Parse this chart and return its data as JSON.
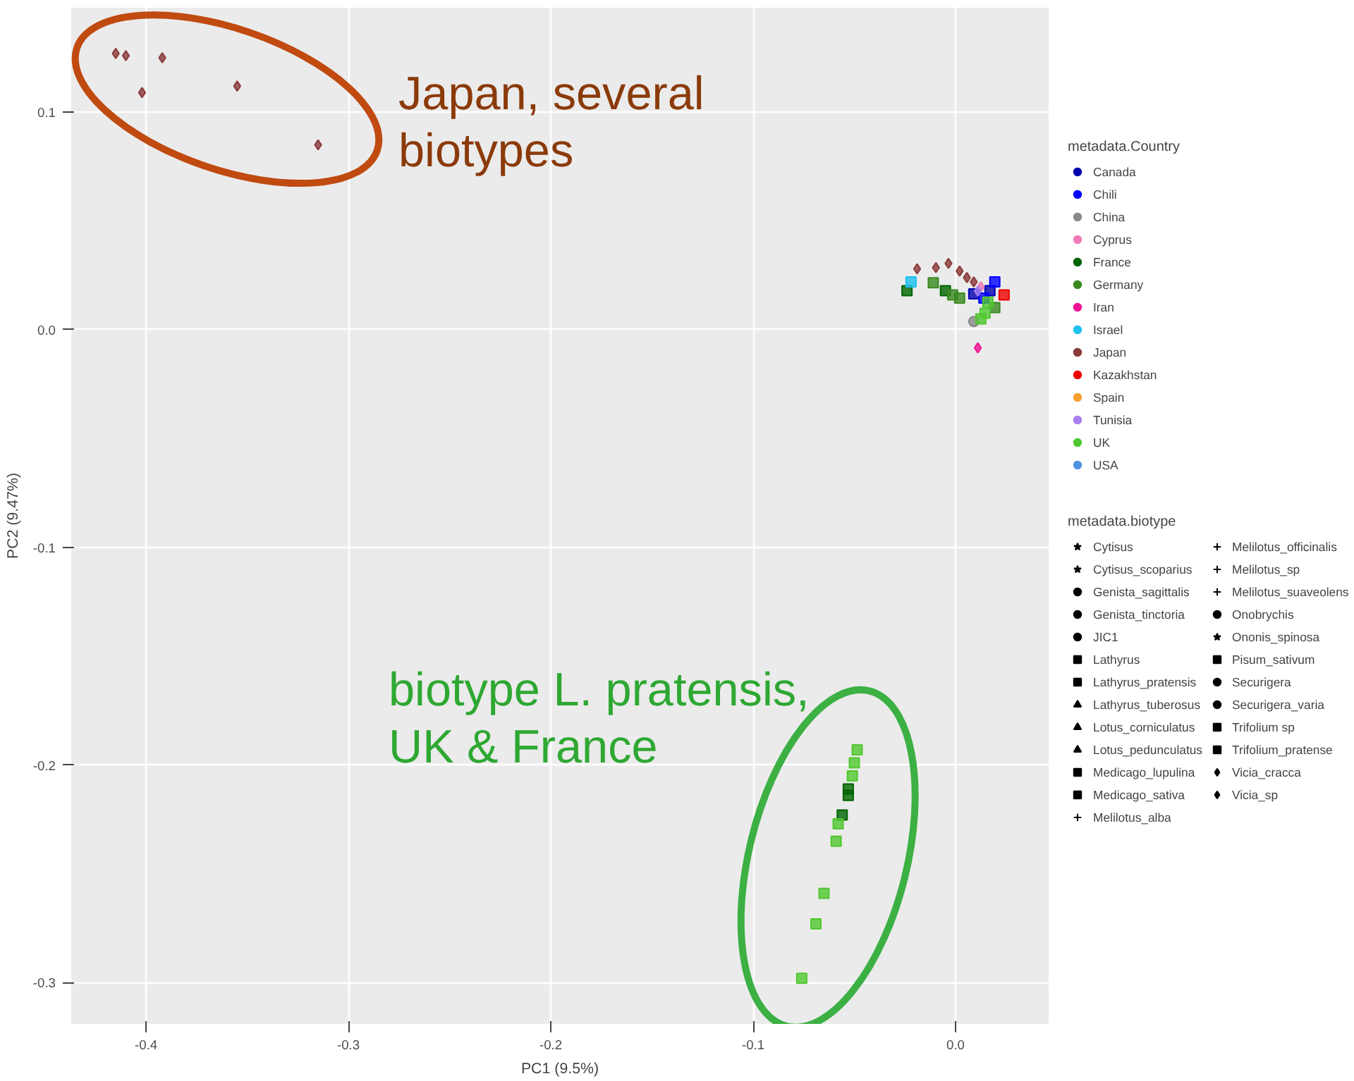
{
  "chart_data": {
    "type": "scatter",
    "xlabel": "PC1 (9.5%)",
    "ylabel": "PC2 (9.47%)",
    "xlim": [
      -0.437,
      0.046
    ],
    "ylim": [
      -0.319,
      0.148
    ],
    "xticks": [
      -0.4,
      -0.3,
      -0.2,
      -0.1,
      {
        "value": 0,
        "label": "0.0"
      }
    ],
    "yticks": [
      -0.3,
      -0.2,
      -0.1,
      {
        "value": 0,
        "label": "0.0"
      },
      0.1
    ],
    "grid": true,
    "legend": "right",
    "legend_title": [
      "metadata.Country",
      "metadata.biotype"
    ],
    "annotations": [
      "Japan, several\nbiotypes",
      "biotype L. pratensis,\nUK & France"
    ],
    "series": [
      {
        "name": "Canada",
        "color": "#0000b0",
        "marker": "square",
        "x": [
          0.009,
          0.017
        ],
        "values": [
          0.0165,
          0.018
        ]
      },
      {
        "name": "Chili",
        "color": "#0000ff",
        "marker": "square",
        "x": [
          0.014,
          0.0194
        ],
        "values": [
          0.0146,
          0.022
        ]
      },
      {
        "name": "China",
        "color": "#888888",
        "marker": "circle",
        "x": [
          0.009
        ],
        "values": [
          0.0038
        ]
      },
      {
        "name": "Cyprus",
        "color": "#f07ab8",
        "marker": "diamond",
        "x": [
          0.0125
        ],
        "values": [
          0.0197
        ]
      },
      {
        "name": "France",
        "color": "#006400",
        "marker": "square",
        "x": [
          -0.024,
          -0.005,
          -0.053,
          -0.053,
          -0.056
        ],
        "values": [
          0.018,
          0.018,
          -0.211,
          -0.214,
          -0.223
        ]
      },
      {
        "name": "Germany",
        "color": "#3a8a20",
        "marker": "square",
        "x": [
          -0.011,
          -0.0014,
          0.002,
          0.0194
        ],
        "values": [
          0.0216,
          0.016,
          0.0146,
          0.0102
        ]
      },
      {
        "name": "Iran",
        "color": "#ee1493",
        "marker": "diamond",
        "x": [
          0.011
        ],
        "values": [
          -0.0083
        ]
      },
      {
        "name": "Israel",
        "color": "#1ec0f0",
        "marker": "square",
        "x": [
          -0.022
        ],
        "values": [
          0.022
        ]
      },
      {
        "name": "Japan",
        "color": "#8b3a3a",
        "marker": "diamond",
        "x": [
          -0.415,
          -0.41,
          -0.392,
          -0.402,
          -0.355,
          -0.315,
          -0.019,
          -0.0097,
          -0.0035,
          0.002,
          0.0056,
          0.009
        ],
        "values": [
          0.127,
          0.126,
          0.125,
          0.109,
          0.112,
          0.085,
          0.028,
          0.0286,
          0.0305,
          0.027,
          0.024,
          0.022
        ]
      },
      {
        "name": "Kazakhstan",
        "color": "#ee0000",
        "marker": "square",
        "x": [
          0.024
        ],
        "values": [
          0.016
        ]
      },
      {
        "name": "Spain",
        "color": "#f5a030",
        "marker": "circle"
      },
      {
        "name": "Tunisia",
        "color": "#a87ef0",
        "marker": "diamond",
        "x": [
          0.011
        ],
        "values": [
          0.0178
        ]
      },
      {
        "name": "UK",
        "color": "#50c830",
        "marker": "square",
        "x": [
          -0.0486,
          -0.05,
          -0.051,
          -0.058,
          -0.059,
          -0.065,
          -0.069,
          -0.076,
          0.016,
          0.0146,
          0.0125
        ],
        "values": [
          -0.193,
          -0.199,
          -0.205,
          -0.227,
          -0.235,
          -0.259,
          -0.273,
          -0.298,
          0.0127,
          0.0076,
          0.005
        ]
      },
      {
        "name": "USA",
        "color": "#5090e0",
        "marker": "circle"
      },
      {
        "name": "Cytisus",
        "marker": "star"
      },
      {
        "name": "Cytisus_scoparius",
        "marker": "star"
      },
      {
        "name": "Genista_sagittalis",
        "marker": "circle"
      },
      {
        "name": "Genista_tinctoria",
        "marker": "circle"
      },
      {
        "name": "JIC1",
        "marker": "circle"
      },
      {
        "name": "Lathyrus",
        "marker": "square"
      },
      {
        "name": "Lathyrus_pratensis",
        "marker": "square"
      },
      {
        "name": "Lathyrus_tuberosus",
        "marker": "triangle"
      },
      {
        "name": "Lotus_corniculatus",
        "marker": "triangle"
      },
      {
        "name": "Lotus_pedunculatus",
        "marker": "triangle"
      },
      {
        "name": "Medicago_lupulina",
        "marker": "square"
      },
      {
        "name": "Medicago_sativa",
        "marker": "square"
      },
      {
        "name": "Melilotus_alba",
        "marker": "cross"
      },
      {
        "name": "Melilotus_officinalis",
        "marker": "cross"
      },
      {
        "name": "Melilotus_sp",
        "marker": "cross"
      },
      {
        "name": "Melilotus_suaveolens",
        "marker": "cross"
      },
      {
        "name": "Onobrychis",
        "marker": "circle"
      },
      {
        "name": "Ononis_spinosa",
        "marker": "star"
      },
      {
        "name": "Pisum_sativum",
        "marker": "square"
      },
      {
        "name": "Securigera",
        "marker": "circle"
      },
      {
        "name": "Securigera_varia",
        "marker": "circle"
      },
      {
        "name": "Trifolium sp",
        "marker": "square"
      },
      {
        "name": "Trifolium_pratense",
        "marker": "square"
      },
      {
        "name": "Vicia_cracca",
        "marker": "diamond"
      },
      {
        "name": "Vicia_sp",
        "marker": "diamond"
      }
    ]
  }
}
